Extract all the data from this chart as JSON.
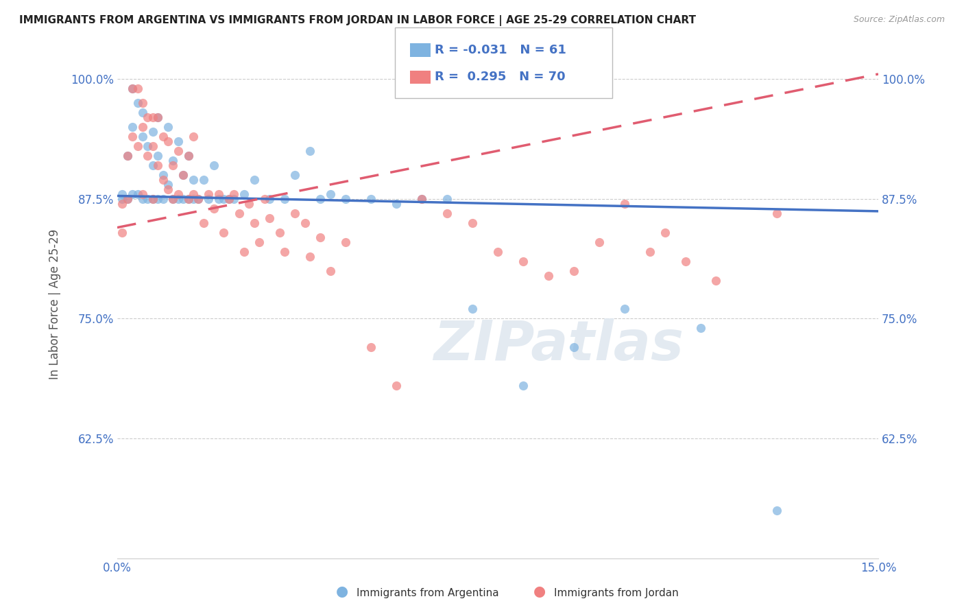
{
  "title": "IMMIGRANTS FROM ARGENTINA VS IMMIGRANTS FROM JORDAN IN LABOR FORCE | AGE 25-29 CORRELATION CHART",
  "source": "Source: ZipAtlas.com",
  "ylabel": "In Labor Force | Age 25-29",
  "xlim": [
    0.0,
    0.15
  ],
  "ylim": [
    0.5,
    1.03
  ],
  "xticks": [
    0.0,
    0.05,
    0.1,
    0.15
  ],
  "xticklabels": [
    "0.0%",
    "",
    "",
    "15.0%"
  ],
  "yticks": [
    0.625,
    0.75,
    0.875,
    1.0
  ],
  "yticklabels": [
    "62.5%",
    "75.0%",
    "87.5%",
    "100.0%"
  ],
  "argentina_R": -0.031,
  "argentina_N": 61,
  "jordan_R": 0.295,
  "jordan_N": 70,
  "argentina_color": "#7EB3E0",
  "jordan_color": "#F08080",
  "argentina_line_color": "#4472C4",
  "jordan_line_color": "#E05C70",
  "watermark": "ZIPatlas",
  "argentina_line_x0": 0.0,
  "argentina_line_y0": 0.878,
  "argentina_line_x1": 0.15,
  "argentina_line_y1": 0.862,
  "jordan_line_x0": 0.0,
  "jordan_line_y0": 0.845,
  "jordan_line_x1": 0.15,
  "jordan_line_y1": 1.005,
  "argentina_x": [
    0.001,
    0.001,
    0.002,
    0.002,
    0.003,
    0.003,
    0.003,
    0.004,
    0.004,
    0.005,
    0.005,
    0.005,
    0.006,
    0.006,
    0.007,
    0.007,
    0.007,
    0.008,
    0.008,
    0.008,
    0.009,
    0.009,
    0.01,
    0.01,
    0.011,
    0.011,
    0.012,
    0.012,
    0.013,
    0.013,
    0.014,
    0.014,
    0.015,
    0.015,
    0.016,
    0.017,
    0.018,
    0.019,
    0.02,
    0.021,
    0.022,
    0.023,
    0.025,
    0.027,
    0.03,
    0.033,
    0.035,
    0.038,
    0.04,
    0.042,
    0.045,
    0.05,
    0.055,
    0.06,
    0.065,
    0.07,
    0.08,
    0.09,
    0.1,
    0.115,
    0.13
  ],
  "argentina_y": [
    0.88,
    0.875,
    0.92,
    0.875,
    0.99,
    0.95,
    0.88,
    0.975,
    0.88,
    0.965,
    0.94,
    0.875,
    0.93,
    0.875,
    0.945,
    0.91,
    0.875,
    0.96,
    0.92,
    0.875,
    0.9,
    0.875,
    0.95,
    0.89,
    0.915,
    0.875,
    0.935,
    0.875,
    0.9,
    0.875,
    0.92,
    0.875,
    0.895,
    0.875,
    0.875,
    0.895,
    0.875,
    0.91,
    0.875,
    0.875,
    0.875,
    0.875,
    0.88,
    0.895,
    0.875,
    0.875,
    0.9,
    0.925,
    0.875,
    0.88,
    0.875,
    0.875,
    0.87,
    0.875,
    0.875,
    0.76,
    0.68,
    0.72,
    0.76,
    0.74,
    0.55
  ],
  "jordan_x": [
    0.001,
    0.001,
    0.002,
    0.002,
    0.003,
    0.003,
    0.004,
    0.004,
    0.005,
    0.005,
    0.005,
    0.006,
    0.006,
    0.007,
    0.007,
    0.007,
    0.008,
    0.008,
    0.009,
    0.009,
    0.01,
    0.01,
    0.011,
    0.011,
    0.012,
    0.012,
    0.013,
    0.014,
    0.014,
    0.015,
    0.015,
    0.016,
    0.017,
    0.018,
    0.019,
    0.02,
    0.021,
    0.022,
    0.023,
    0.024,
    0.025,
    0.026,
    0.027,
    0.028,
    0.029,
    0.03,
    0.032,
    0.033,
    0.035,
    0.037,
    0.038,
    0.04,
    0.042,
    0.045,
    0.05,
    0.055,
    0.06,
    0.065,
    0.07,
    0.075,
    0.08,
    0.085,
    0.09,
    0.095,
    0.1,
    0.105,
    0.108,
    0.112,
    0.118,
    0.13
  ],
  "jordan_y": [
    0.87,
    0.84,
    0.92,
    0.875,
    0.99,
    0.94,
    0.99,
    0.93,
    0.975,
    0.95,
    0.88,
    0.96,
    0.92,
    0.96,
    0.93,
    0.875,
    0.96,
    0.91,
    0.94,
    0.895,
    0.935,
    0.885,
    0.91,
    0.875,
    0.925,
    0.88,
    0.9,
    0.92,
    0.875,
    0.94,
    0.88,
    0.875,
    0.85,
    0.88,
    0.865,
    0.88,
    0.84,
    0.875,
    0.88,
    0.86,
    0.82,
    0.87,
    0.85,
    0.83,
    0.875,
    0.855,
    0.84,
    0.82,
    0.86,
    0.85,
    0.815,
    0.835,
    0.8,
    0.83,
    0.72,
    0.68,
    0.875,
    0.86,
    0.85,
    0.82,
    0.81,
    0.795,
    0.8,
    0.83,
    0.87,
    0.82,
    0.84,
    0.81,
    0.79,
    0.86
  ]
}
